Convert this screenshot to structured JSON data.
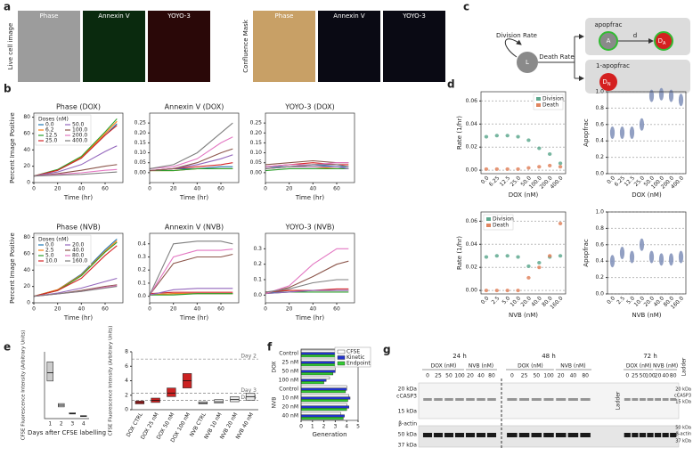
{
  "panel_labels": [
    "a",
    "b",
    "c",
    "d",
    "e",
    "f",
    "g"
  ],
  "panel_a": {
    "left_labels": [
      "Phase",
      "Annexin V",
      "YOYO-3"
    ],
    "right_labels": [
      "Phase",
      "Annexin V",
      "YOYO-3"
    ],
    "row_labels": [
      "Live cell image",
      "Confluence Mask"
    ]
  },
  "panel_c": {
    "division": "Division Rate",
    "death": "Death Rate",
    "L": "L",
    "apopfrac": "apopfrac",
    "A": "A",
    "d": "d",
    "DA": [
      "D",
      "A"
    ],
    "not_apopfrac": "1-apopfrac",
    "DN": [
      "D",
      "N"
    ]
  },
  "panel_g": {
    "times": [
      "24 h",
      "48 h",
      "72 h"
    ],
    "drugs": [
      "DOX (nM)",
      "NVB (nM)"
    ],
    "lanes": [
      "0",
      "25",
      "50",
      "100",
      "20",
      "40",
      "80"
    ],
    "ladder": "Ladder",
    "left_markers": [
      "20 kDa",
      "cCASP3",
      "15 kDa",
      "β-actin",
      "50 kDa",
      "37 kDa"
    ],
    "right_markers": [
      "20 kDa",
      "cCASP3",
      "15 kDa",
      "50 kDa",
      "β-actin",
      "37 kDa"
    ]
  },
  "chart_data": [
    {
      "type": "line",
      "title": "Phase (DOX)",
      "xlabel": "Time (hr)",
      "ylabel": "Percent Image Positive",
      "x": [
        0,
        20,
        40,
        60,
        70
      ],
      "xlim": [
        0,
        75
      ],
      "xticks": [
        0,
        20,
        40,
        60
      ],
      "ylim": [
        0,
        85
      ],
      "yticks": [
        0,
        20,
        40,
        60,
        80
      ],
      "legend_title": "Doses (nM)",
      "series": [
        {
          "name": "0.0",
          "color": "#1f77b4",
          "values": [
            8,
            15,
            30,
            58,
            72
          ]
        },
        {
          "name": "6.2",
          "color": "#ff7f0e",
          "values": [
            8,
            15,
            31,
            60,
            75
          ]
        },
        {
          "name": "12.5",
          "color": "#2ca02c",
          "values": [
            8,
            16,
            32,
            62,
            78
          ]
        },
        {
          "name": "25.0",
          "color": "#d62728",
          "values": [
            8,
            15,
            30,
            58,
            70
          ]
        },
        {
          "name": "50.0",
          "color": "#9467bd",
          "values": [
            8,
            13,
            22,
            38,
            45
          ]
        },
        {
          "name": "100.0",
          "color": "#8c564b",
          "values": [
            8,
            11,
            15,
            20,
            22
          ]
        },
        {
          "name": "200.0",
          "color": "#e377c2",
          "values": [
            8,
            10,
            12,
            15,
            16
          ]
        },
        {
          "name": "400.0",
          "color": "#7f7f7f",
          "values": [
            8,
            9,
            10,
            12,
            13
          ]
        }
      ]
    },
    {
      "type": "line",
      "title": "Annexin V (DOX)",
      "xlabel": "Time (hr)",
      "x": [
        0,
        20,
        40,
        60,
        70
      ],
      "xlim": [
        0,
        75
      ],
      "xticks": [
        0,
        20,
        40,
        60
      ],
      "ylim": [
        -0.05,
        0.3
      ],
      "yticks": [
        {
          "value": 0,
          "label": "0.00"
        },
        0.05,
        {
          "value": 0.1,
          "label": "0.10"
        },
        0.15,
        {
          "value": 0.2,
          "label": "0.20"
        },
        0.25
      ],
      "series": [
        {
          "color": "#1f77b4",
          "values": [
            0.01,
            0.02,
            0.02,
            0.03,
            0.03
          ]
        },
        {
          "color": "#ff7f0e",
          "values": [
            0.01,
            0.01,
            0.02,
            0.02,
            0.02
          ]
        },
        {
          "color": "#2ca02c",
          "values": [
            0.01,
            0.01,
            0.02,
            0.02,
            0.02
          ]
        },
        {
          "color": "#d62728",
          "values": [
            0.01,
            0.02,
            0.03,
            0.04,
            0.05
          ]
        },
        {
          "color": "#9467bd",
          "values": [
            0.01,
            0.02,
            0.04,
            0.07,
            0.09
          ]
        },
        {
          "color": "#8c564b",
          "values": [
            0.01,
            0.02,
            0.05,
            0.1,
            0.12
          ]
        },
        {
          "color": "#e377c2",
          "values": [
            0.02,
            0.03,
            0.07,
            0.15,
            0.18
          ]
        },
        {
          "color": "#7f7f7f",
          "values": [
            0.02,
            0.04,
            0.1,
            0.2,
            0.25
          ]
        }
      ]
    },
    {
      "type": "line",
      "title": "YOYO-3 (DOX)",
      "xlabel": "Time (hr)",
      "x": [
        0,
        20,
        40,
        60,
        70
      ],
      "xlim": [
        0,
        75
      ],
      "xticks": [
        0,
        20,
        40,
        60
      ],
      "ylim": [
        -0.05,
        0.3
      ],
      "yticks": [
        {
          "value": 0,
          "label": "0.00"
        },
        0.05,
        {
          "value": 0.1,
          "label": "0.10"
        },
        0.15,
        {
          "value": 0.2,
          "label": "0.20"
        },
        0.25
      ],
      "series": [
        {
          "color": "#1f77b4",
          "values": [
            0.03,
            0.03,
            0.04,
            0.03,
            0.03
          ]
        },
        {
          "color": "#ff7f0e",
          "values": [
            0.02,
            0.03,
            0.03,
            0.02,
            0.02
          ]
        },
        {
          "color": "#2ca02c",
          "values": [
            0.01,
            0.02,
            0.02,
            0.02,
            0.02
          ]
        },
        {
          "color": "#d62728",
          "values": [
            0.03,
            0.04,
            0.05,
            0.04,
            0.04
          ]
        },
        {
          "color": "#9467bd",
          "values": [
            0.02,
            0.03,
            0.03,
            0.03,
            0.02
          ]
        },
        {
          "color": "#8c564b",
          "values": [
            0.04,
            0.05,
            0.06,
            0.05,
            0.05
          ]
        },
        {
          "color": "#e377c2",
          "values": [
            0.03,
            0.04,
            0.04,
            0.05,
            0.05
          ]
        },
        {
          "color": "#7f7f7f",
          "values": [
            0.02,
            0.03,
            0.04,
            0.04,
            0.03
          ]
        }
      ]
    },
    {
      "type": "line",
      "title": "Phase (NVB)",
      "xlabel": "Time (hr)",
      "ylabel": "Percent Image Positive",
      "x": [
        0,
        20,
        40,
        60,
        70
      ],
      "xlim": [
        0,
        75
      ],
      "xticks": [
        0,
        20,
        40,
        60
      ],
      "ylim": [
        0,
        85
      ],
      "yticks": [
        0,
        20,
        40,
        60,
        80
      ],
      "legend_title": "Doses (nM)",
      "series": [
        {
          "name": "0.0",
          "color": "#1f77b4",
          "values": [
            8,
            16,
            35,
            65,
            78
          ]
        },
        {
          "name": "2.5",
          "color": "#ff7f0e",
          "values": [
            8,
            16,
            34,
            63,
            76
          ]
        },
        {
          "name": "5.0",
          "color": "#2ca02c",
          "values": [
            8,
            15,
            33,
            62,
            74
          ]
        },
        {
          "name": "10.0",
          "color": "#d62728",
          "values": [
            8,
            15,
            30,
            58,
            70
          ]
        },
        {
          "name": "20.0",
          "color": "#9467bd",
          "values": [
            8,
            12,
            18,
            26,
            30
          ]
        },
        {
          "name": "40.0",
          "color": "#8c564b",
          "values": [
            8,
            11,
            15,
            20,
            22
          ]
        },
        {
          "name": "80.0",
          "color": "#e377c2",
          "values": [
            8,
            11,
            14,
            19,
            21
          ]
        },
        {
          "name": "160.0",
          "color": "#7f7f7f",
          "values": [
            8,
            11,
            14,
            18,
            20
          ]
        }
      ]
    },
    {
      "type": "line",
      "title": "Annexin V (NVB)",
      "xlabel": "Time (hr)",
      "x": [
        0,
        20,
        40,
        60,
        70
      ],
      "xlim": [
        0,
        75
      ],
      "xticks": [
        0,
        20,
        40,
        60
      ],
      "ylim": [
        -0.05,
        0.48
      ],
      "yticks": [
        {
          "value": 0,
          "label": "0.0"
        },
        0.1,
        0.2,
        0.3,
        0.4
      ],
      "series": [
        {
          "color": "#1f77b4",
          "values": [
            0.01,
            0.02,
            0.02,
            0.02,
            0.02
          ]
        },
        {
          "color": "#ff7f0e",
          "values": [
            0.01,
            0.02,
            0.02,
            0.02,
            0.02
          ]
        },
        {
          "color": "#2ca02c",
          "values": [
            0.01,
            0.01,
            0.02,
            0.02,
            0.02
          ]
        },
        {
          "color": "#d62728",
          "values": [
            0.02,
            0.03,
            0.03,
            0.03,
            0.03
          ]
        },
        {
          "color": "#9467bd",
          "values": [
            0.01,
            0.05,
            0.06,
            0.06,
            0.06
          ]
        },
        {
          "color": "#8c564b",
          "values": [
            0.01,
            0.25,
            0.3,
            0.3,
            0.32
          ]
        },
        {
          "color": "#e377c2",
          "values": [
            0.01,
            0.3,
            0.35,
            0.35,
            0.36
          ]
        },
        {
          "color": "#7f7f7f",
          "values": [
            0.01,
            0.4,
            0.42,
            0.42,
            0.4
          ]
        }
      ]
    },
    {
      "type": "line",
      "title": "YOYO-3 (NVB)",
      "xlabel": "Time (hr)",
      "x": [
        0,
        20,
        40,
        60,
        70
      ],
      "xlim": [
        0,
        75
      ],
      "xticks": [
        0,
        20,
        40,
        60
      ],
      "ylim": [
        -0.05,
        0.4
      ],
      "yticks": [
        {
          "value": 0,
          "label": "0.0"
        },
        0.1,
        0.2,
        0.3
      ],
      "series": [
        {
          "color": "#1f77b4",
          "values": [
            0.02,
            0.02,
            0.03,
            0.03,
            0.03
          ]
        },
        {
          "color": "#ff7f0e",
          "values": [
            0.02,
            0.03,
            0.03,
            0.03,
            0.03
          ]
        },
        {
          "color": "#2ca02c",
          "values": [
            0.01,
            0.02,
            0.02,
            0.02,
            0.02
          ]
        },
        {
          "color": "#d62728",
          "values": [
            0.02,
            0.03,
            0.03,
            0.04,
            0.04
          ]
        },
        {
          "color": "#9467bd",
          "values": [
            0.01,
            0.02,
            0.03,
            0.03,
            0.03
          ]
        },
        {
          "color": "#8c564b",
          "values": [
            0.01,
            0.05,
            0.12,
            0.2,
            0.22
          ]
        },
        {
          "color": "#e377c2",
          "values": [
            0.01,
            0.06,
            0.2,
            0.3,
            0.3
          ]
        },
        {
          "color": "#7f7f7f",
          "values": [
            0.02,
            0.04,
            0.08,
            0.1,
            0.1
          ]
        }
      ]
    },
    {
      "type": "violin",
      "xlabel": "DOX (nM)",
      "ylabel": "Rate (1/hr)",
      "categories": [
        "0.0",
        "6.25",
        "12.5",
        "25.0",
        "50.0",
        "100.0",
        "200.0",
        "400.0"
      ],
      "ylim": [
        -0.003,
        0.068
      ],
      "yticks": [
        {
          "value": 0,
          "label": "0.00"
        },
        0.02,
        0.04,
        0.06
      ],
      "grid": true,
      "legend": "upper right",
      "series": [
        {
          "name": "Division",
          "color": "#5fa98f",
          "values": [
            0.029,
            0.03,
            0.03,
            0.029,
            0.026,
            0.019,
            0.014,
            0.006
          ]
        },
        {
          "name": "Death",
          "color": "#e0845e",
          "values": [
            0.001,
            0.001,
            0.001,
            0.001,
            0.002,
            0.003,
            0.004,
            0.003
          ]
        }
      ]
    },
    {
      "type": "violin",
      "xlabel": "DOX (nM)",
      "ylabel": "Apopfrac",
      "categories": [
        "0.0",
        "6.25",
        "12.5",
        "25.0",
        "50.0",
        "100.0",
        "200.0",
        "400.0"
      ],
      "ylim": [
        0,
        1
      ],
      "yticks": [
        {
          "value": 0,
          "label": "0.0"
        },
        0.2,
        0.4,
        0.6,
        0.8,
        {
          "value": 1,
          "label": "1.0"
        }
      ],
      "grid": true,
      "series": [
        {
          "color": "#7f8fb8",
          "values": [
            0.5,
            0.5,
            0.5,
            0.6,
            0.95,
            0.97,
            0.95,
            0.9
          ]
        }
      ]
    },
    {
      "type": "violin",
      "xlabel": "NVB (nM)",
      "ylabel": "Rate (1/hr)",
      "categories": [
        "0.0",
        "2.5",
        "5.0",
        "10.0",
        "20.0",
        "40.0",
        "80.0",
        "160.0"
      ],
      "ylim": [
        -0.003,
        0.068
      ],
      "yticks": [
        {
          "value": 0,
          "label": "0.00"
        },
        0.02,
        0.04,
        0.06
      ],
      "grid": true,
      "legend": "upper left",
      "series": [
        {
          "name": "Division",
          "color": "#5fa98f",
          "values": [
            0.029,
            0.03,
            0.03,
            0.029,
            0.021,
            0.024,
            0.029,
            0.03
          ]
        },
        {
          "name": "Death",
          "color": "#e0845e",
          "values": [
            0.0,
            0.0,
            0.0,
            0.0,
            0.011,
            0.02,
            0.03,
            0.058
          ]
        }
      ]
    },
    {
      "type": "violin",
      "xlabel": "NVB (nM)",
      "ylabel": "Apopfrac",
      "categories": [
        "0.0",
        "2.5",
        "5.0",
        "10.0",
        "20.0",
        "40.0",
        "80.0",
        "160.0"
      ],
      "ylim": [
        0,
        1
      ],
      "yticks": [
        {
          "value": 0,
          "label": "0.0"
        },
        0.2,
        0.4,
        0.6,
        0.8,
        {
          "value": 1,
          "label": "1.0"
        }
      ],
      "grid": true,
      "series": [
        {
          "color": "#7f8fb8",
          "values": [
            0.4,
            0.5,
            0.45,
            0.6,
            0.45,
            0.42,
            0.42,
            0.45
          ]
        }
      ]
    },
    {
      "type": "box",
      "xlabel": "Days after CFSE labelling",
      "ylabel": "CFSE Fluorescence Intensity (Arbitrary Units)",
      "categories": [
        "1",
        "2",
        "3",
        "4"
      ],
      "ylim": [
        0,
        8
      ],
      "colors": [
        "#cccccc",
        "#cccccc",
        "#cccccc",
        "#cccccc"
      ],
      "q1": [
        4.5,
        1.4,
        0.55,
        0.25
      ],
      "median": [
        5.5,
        1.6,
        0.6,
        0.3
      ],
      "q3": [
        6.8,
        1.8,
        0.7,
        0.35
      ]
    },
    {
      "type": "box",
      "ylabel": "CFSE Fluorescence Intensity (Arbitrary Units)",
      "categories": [
        "DOX CTRL",
        "DOX 25 nM",
        "DOX 50 nM",
        "DOX 100 nM",
        "NVB CTRL",
        "NVB 10 nM",
        "NVB 20 nM",
        "NVB 40 nM"
      ],
      "ylim": [
        0,
        8
      ],
      "yticks": [
        0,
        2,
        4,
        6,
        8
      ],
      "colors": [
        "#cc2222",
        "#cc2222",
        "#cc2222",
        "#cc2222",
        "#e8e8e8",
        "#e8e8e8",
        "#e8e8e8",
        "#e8e8e8"
      ],
      "q1": [
        0.8,
        1.0,
        1.8,
        3.0,
        0.8,
        0.9,
        1.1,
        1.3
      ],
      "median": [
        1.0,
        1.3,
        2.3,
        4.0,
        0.9,
        1.1,
        1.4,
        1.8
      ],
      "q3": [
        1.2,
        1.6,
        3.0,
        5.0,
        1.1,
        1.4,
        1.8,
        2.3
      ],
      "reference_lines": [
        {
          "label": "Day 2",
          "value": 7
        },
        {
          "label": "Day 3",
          "value": 2.3
        },
        {
          "label": "Day 4",
          "value": 1.3
        }
      ]
    },
    {
      "type": "hbar",
      "xlabel": "Generation",
      "categories": [
        "Control",
        "25 nM",
        "50 nM",
        "100 nM",
        "Control",
        "10 nM",
        "20 nM",
        "40 nM"
      ],
      "groups": [
        "DOX",
        "NVB"
      ],
      "xlim": [
        0,
        5
      ],
      "xticks": [
        0,
        1,
        2,
        3,
        4,
        5
      ],
      "legend": "upper right",
      "series": [
        {
          "name": "CFSE",
          "color": "#ffffff",
          "values": [
            4.0,
            3.6,
            3.0,
            2.5,
            4.0,
            4.2,
            4.0,
            3.5
          ]
        },
        {
          "name": "Kinetic",
          "color": "#2233cc",
          "values": [
            3.9,
            3.5,
            3.0,
            2.2,
            4.0,
            4.3,
            4.2,
            3.8
          ]
        },
        {
          "name": "Endpoint",
          "color": "#33cc33",
          "values": [
            3.8,
            3.4,
            2.8,
            2.0,
            3.9,
            4.1,
            4.0,
            3.7
          ]
        }
      ]
    }
  ]
}
